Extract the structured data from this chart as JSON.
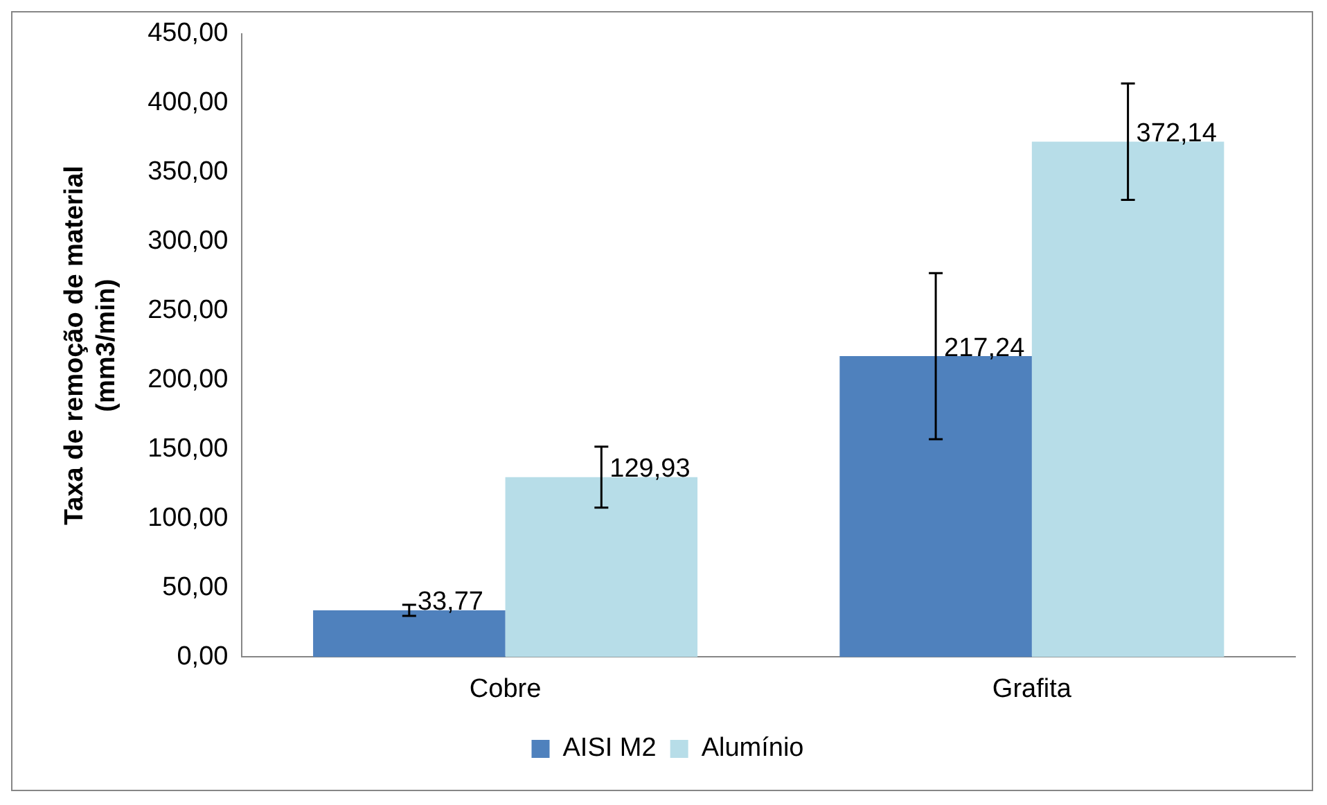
{
  "chart_data": {
    "type": "bar",
    "ylabel": "Taxa de remoção de material\n(mm3/min)",
    "categories": [
      "Cobre",
      "Grafita"
    ],
    "series": [
      {
        "name": "AISI M2",
        "color": "#4f81bd",
        "values": [
          33.77,
          217.24
        ],
        "errors": [
          4,
          60
        ],
        "value_labels": [
          "33,77",
          "217,24"
        ]
      },
      {
        "name": "Alumínio",
        "color": "#b7dde8",
        "values": [
          129.93,
          372.14
        ],
        "errors": [
          22,
          42
        ],
        "value_labels": [
          "129,93",
          "372,14"
        ]
      }
    ],
    "ylim": [
      0,
      450
    ],
    "yticks": [
      {
        "value": 0,
        "label": "0,00"
      },
      {
        "value": 50,
        "label": "50,00"
      },
      {
        "value": 100,
        "label": "100,00"
      },
      {
        "value": 150,
        "label": "150,00"
      },
      {
        "value": 200,
        "label": "200,00"
      },
      {
        "value": 250,
        "label": "250,00"
      },
      {
        "value": 300,
        "label": "300,00"
      },
      {
        "value": 350,
        "label": "350,00"
      },
      {
        "value": 400,
        "label": "400,00"
      },
      {
        "value": 450,
        "label": "450,00"
      }
    ],
    "grid": false,
    "legend": "bottom"
  }
}
